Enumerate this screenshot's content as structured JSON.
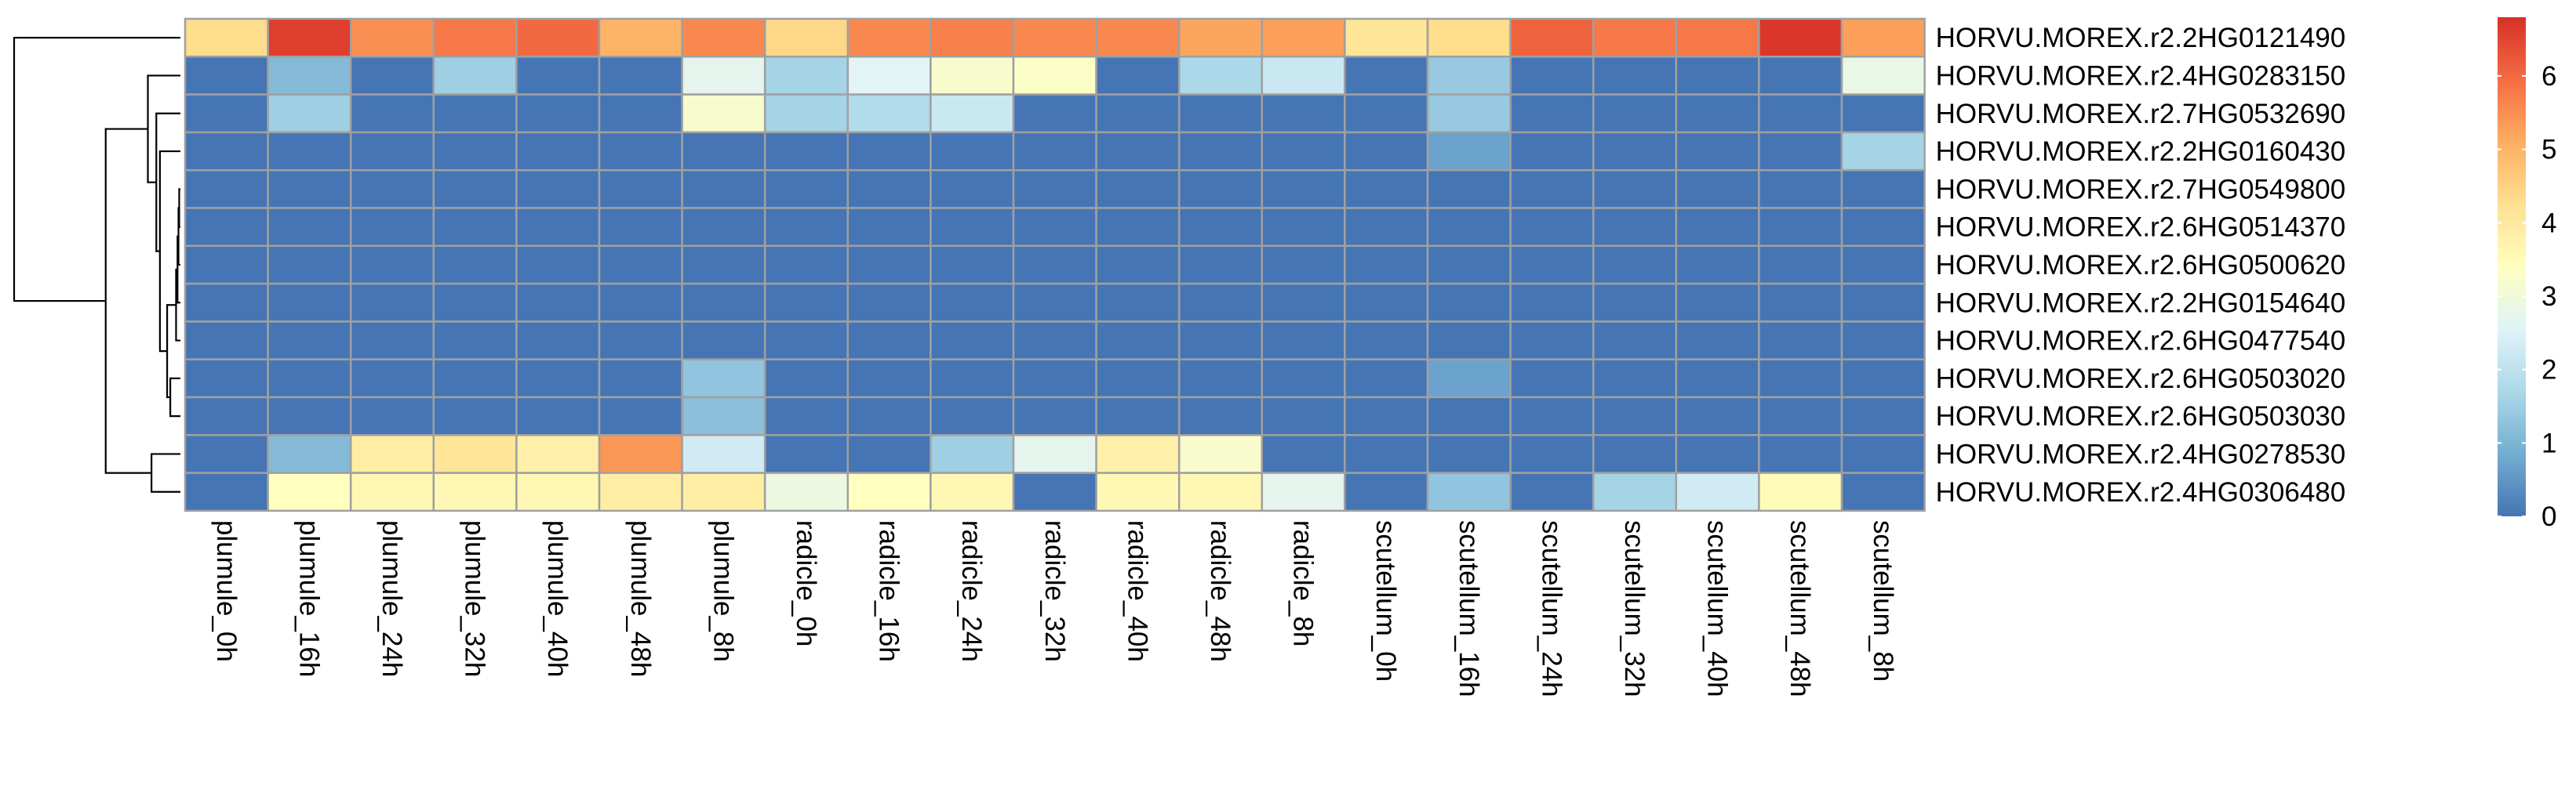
{
  "chart_data": {
    "type": "heatmap",
    "title": "",
    "xlabel": "",
    "ylabel": "",
    "columns": [
      "plumule_0h",
      "plumule_16h",
      "plumule_24h",
      "plumule_32h",
      "plumule_40h",
      "plumule_48h",
      "plumule_8h",
      "radicle_0h",
      "radicle_16h",
      "radicle_24h",
      "radicle_32h",
      "radicle_40h",
      "radicle_48h",
      "radicle_8h",
      "scutellum_0h",
      "scutellum_16h",
      "scutellum_24h",
      "scutellum_32h",
      "scutellum_40h",
      "scutellum_48h",
      "scutellum_8h"
    ],
    "rows": [
      "HORVU.MOREX.r2.2HG0121490",
      "HORVU.MOREX.r2.4HG0283150",
      "HORVU.MOREX.r2.7HG0532690",
      "HORVU.MOREX.r2.2HG0160430",
      "HORVU.MOREX.r2.7HG0549800",
      "HORVU.MOREX.r2.6HG0514370",
      "HORVU.MOREX.r2.6HG0500620",
      "HORVU.MOREX.r2.2HG0154640",
      "HORVU.MOREX.r2.6HG0477540",
      "HORVU.MOREX.r2.6HG0503020",
      "HORVU.MOREX.r2.6HG0503030",
      "HORVU.MOREX.r2.4HG0278530",
      "HORVU.MOREX.r2.4HG0306480"
    ],
    "values": [
      [
        4.3,
        6.6,
        5.5,
        5.8,
        6.0,
        5.0,
        5.6,
        4.4,
        5.6,
        5.7,
        5.6,
        5.6,
        5.2,
        5.3,
        4.1,
        4.3,
        6.1,
        5.8,
        5.8,
        6.7,
        5.3
      ],
      [
        0.0,
        1.1,
        0.0,
        1.5,
        0.0,
        0.0,
        2.7,
        1.6,
        2.6,
        3.2,
        3.3,
        0.0,
        1.7,
        2.2,
        0.0,
        1.4,
        0.0,
        0.0,
        0.0,
        0.0,
        2.8
      ],
      [
        0.0,
        1.5,
        0.0,
        0.0,
        0.0,
        0.0,
        3.2,
        1.6,
        1.8,
        2.2,
        0.0,
        0.0,
        0.0,
        0.0,
        0.0,
        1.4,
        0.0,
        0.0,
        0.0,
        0.0,
        0.0
      ],
      [
        0.0,
        0.0,
        0.0,
        0.0,
        0.0,
        0.0,
        0.0,
        0.0,
        0.0,
        0.0,
        0.0,
        0.0,
        0.0,
        0.0,
        0.0,
        0.7,
        0.0,
        0.0,
        0.0,
        0.0,
        1.6
      ],
      [
        0.0,
        0.0,
        0.0,
        0.0,
        0.0,
        0.0,
        0.0,
        0.0,
        0.0,
        0.0,
        0.0,
        0.0,
        0.0,
        0.0,
        0.0,
        0.0,
        0.0,
        0.0,
        0.0,
        0.0,
        0.0
      ],
      [
        0.0,
        0.0,
        0.0,
        0.0,
        0.0,
        0.0,
        0.0,
        0.0,
        0.0,
        0.0,
        0.0,
        0.0,
        0.0,
        0.0,
        0.0,
        0.0,
        0.0,
        0.0,
        0.0,
        0.0,
        0.0
      ],
      [
        0.0,
        0.0,
        0.0,
        0.0,
        0.0,
        0.0,
        0.0,
        0.0,
        0.0,
        0.0,
        0.0,
        0.0,
        0.0,
        0.0,
        0.0,
        0.0,
        0.0,
        0.0,
        0.0,
        0.0,
        0.0
      ],
      [
        0.0,
        0.0,
        0.0,
        0.0,
        0.0,
        0.0,
        0.0,
        0.0,
        0.0,
        0.0,
        0.0,
        0.0,
        0.0,
        0.0,
        0.0,
        0.0,
        0.0,
        0.0,
        0.0,
        0.0,
        0.0
      ],
      [
        0.0,
        0.0,
        0.0,
        0.0,
        0.0,
        0.0,
        0.0,
        0.0,
        0.0,
        0.0,
        0.0,
        0.0,
        0.0,
        0.0,
        0.0,
        0.0,
        0.0,
        0.0,
        0.0,
        0.0,
        0.0
      ],
      [
        0.0,
        0.0,
        0.0,
        0.0,
        0.0,
        0.0,
        1.3,
        0.0,
        0.0,
        0.0,
        0.0,
        0.0,
        0.0,
        0.0,
        0.0,
        0.7,
        0.0,
        0.0,
        0.0,
        0.0,
        0.0
      ],
      [
        0.0,
        0.0,
        0.0,
        0.0,
        0.0,
        0.0,
        1.2,
        0.0,
        0.0,
        0.0,
        0.0,
        0.0,
        0.0,
        0.0,
        0.0,
        0.0,
        0.0,
        0.0,
        0.0,
        0.0,
        0.0
      ],
      [
        0.0,
        1.1,
        3.9,
        4.1,
        3.8,
        5.4,
        2.3,
        0.0,
        0.0,
        1.5,
        2.7,
        3.8,
        3.2,
        0.0,
        0.0,
        0.0,
        0.0,
        0.0,
        0.0,
        0.0,
        0.0
      ],
      [
        0.0,
        3.4,
        3.6,
        3.6,
        3.6,
        3.9,
        3.9,
        2.9,
        3.4,
        3.6,
        0.0,
        3.6,
        3.6,
        2.7,
        0.0,
        1.3,
        0.0,
        1.6,
        2.3,
        3.5,
        0.0
      ]
    ],
    "color_scale": {
      "min": 0,
      "max": 6.8,
      "ticks": [
        0,
        1,
        2,
        3,
        4,
        5,
        6
      ],
      "stops": [
        "#4575B4",
        "#74ADD1",
        "#ABD9E9",
        "#E0F3F8",
        "#FFFFBF",
        "#FEE090",
        "#FDAE61",
        "#F46D43",
        "#D73027"
      ]
    },
    "cell_border_color": "#A0A0A0",
    "dendrogram": {
      "side": "left",
      "merges": [
        [
          -5,
          -6,
          0.05
        ],
        [
          1,
          -7,
          0.08
        ],
        [
          2,
          -8,
          0.12
        ],
        [
          3,
          -9,
          0.18
        ],
        [
          -10,
          -11,
          0.42
        ],
        [
          4,
          5,
          0.55
        ],
        [
          6,
          -4,
          0.85
        ],
        [
          7,
          -3,
          1.0
        ],
        [
          8,
          -2,
          1.35
        ],
        [
          -12,
          -13,
          1.2
        ],
        [
          9,
          10,
          3.1
        ],
        [
          11,
          -1,
          6.9
        ]
      ]
    }
  }
}
